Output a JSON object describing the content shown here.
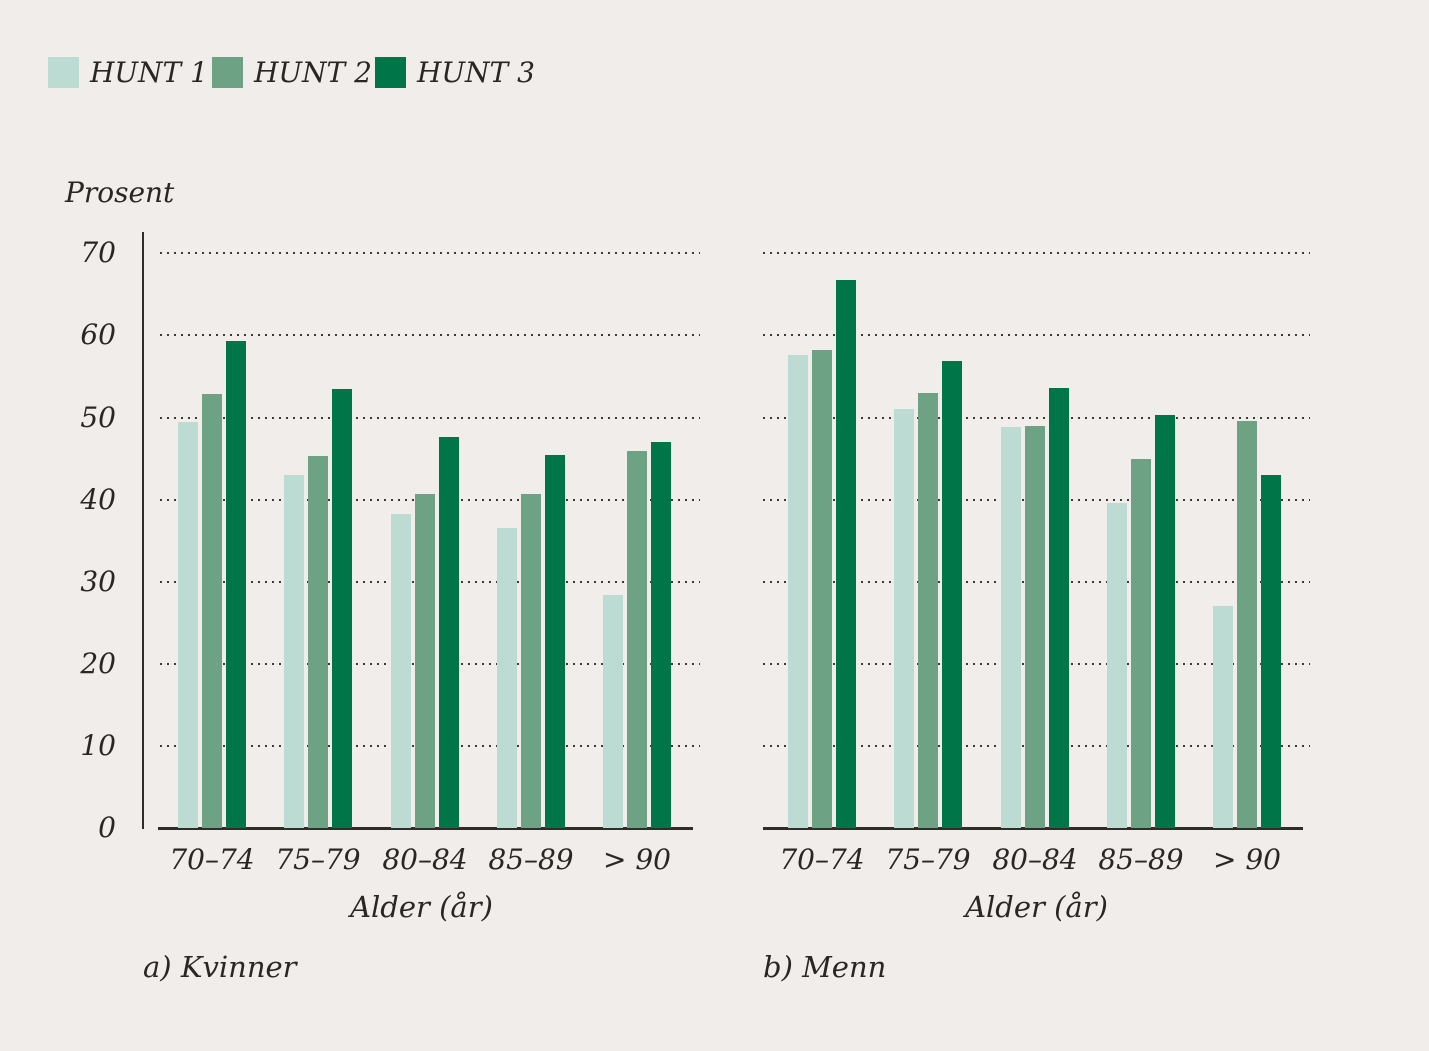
{
  "figure": {
    "background_color": "#f0edea",
    "text_color": "#292724",
    "axis_color": "#2f2d2a",
    "gridline_color": "#3c3936"
  },
  "legend": {
    "items": [
      {
        "label": "HUNT 1",
        "color": "#bcdcd3"
      },
      {
        "label": "HUNT 2",
        "color": "#6ea284"
      },
      {
        "label": "HUNT 3",
        "color": "#007548"
      }
    ]
  },
  "chart_data": [
    {
      "type": "bar",
      "panel_label": "a) Kvinner",
      "xlabel": "Alder (år)",
      "ylabel": "Prosent",
      "ylim": [
        0,
        70
      ],
      "yticks": [
        0,
        10,
        20,
        30,
        40,
        50,
        60,
        70
      ],
      "grid": "dotted-horizontal",
      "legend_position": "top-left",
      "categories": [
        "70–74",
        "75–79",
        "80–84",
        "85–89",
        "> 90"
      ],
      "series": [
        {
          "name": "HUNT 1",
          "values": [
            49.4,
            43.0,
            38.3,
            36.6,
            28.4
          ]
        },
        {
          "name": "HUNT 2",
          "values": [
            52.9,
            45.3,
            40.7,
            40.7,
            45.9
          ]
        },
        {
          "name": "HUNT 3",
          "values": [
            59.3,
            53.5,
            47.6,
            45.4,
            47.0
          ]
        }
      ]
    },
    {
      "type": "bar",
      "panel_label": "b) Menn",
      "xlabel": "Alder (år)",
      "ylabel": "Prosent",
      "ylim": [
        0,
        70
      ],
      "yticks": [
        0,
        10,
        20,
        30,
        40,
        50,
        60,
        70
      ],
      "grid": "dotted-horizontal",
      "legend_position": "top-left",
      "categories": [
        "70–74",
        "75–79",
        "80–84",
        "85–89",
        "> 90"
      ],
      "series": [
        {
          "name": "HUNT 1",
          "values": [
            57.6,
            51.0,
            48.9,
            39.6,
            27.0
          ]
        },
        {
          "name": "HUNT 2",
          "values": [
            58.2,
            53.0,
            49.0,
            45.0,
            49.6
          ]
        },
        {
          "name": "HUNT 3",
          "values": [
            66.8,
            56.9,
            53.6,
            50.3,
            43.0
          ]
        }
      ]
    }
  ]
}
